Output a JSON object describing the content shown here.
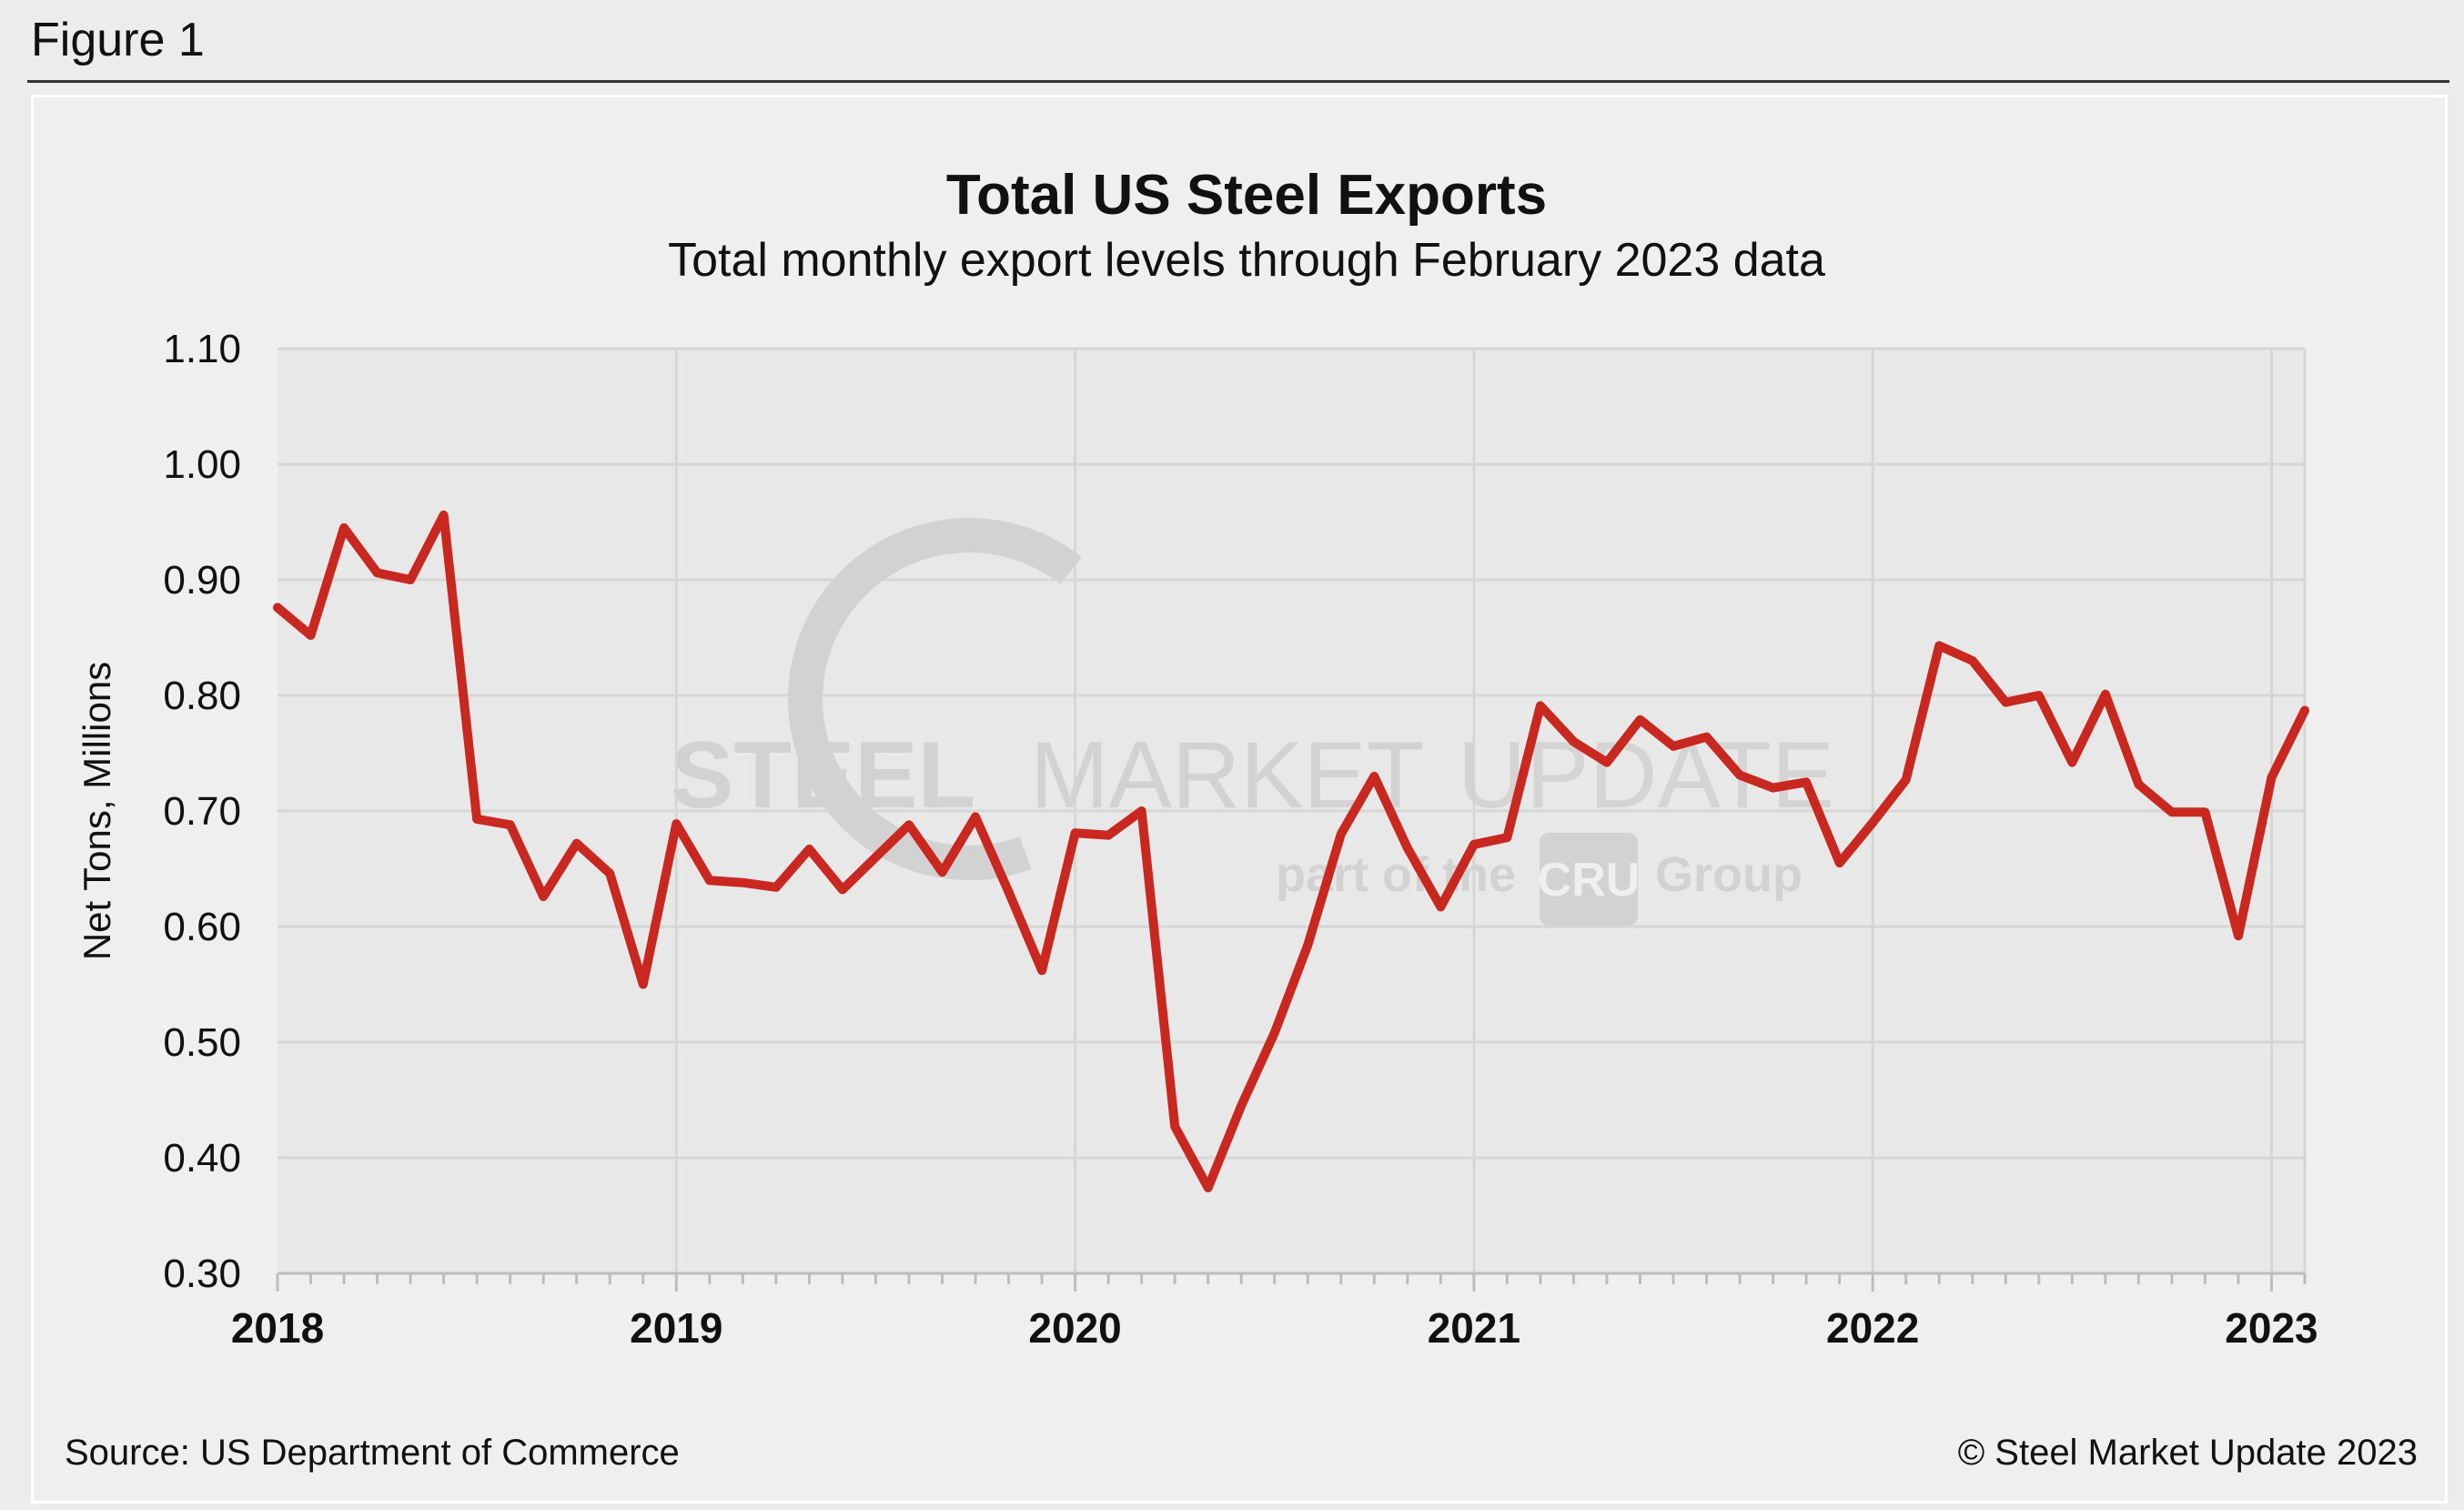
{
  "figure_label": "Figure 1",
  "colors": {
    "line": "#c8281f",
    "plot_bg": "#e8e8e9",
    "grid": "#d6d6d6",
    "watermark": "#d2d2d2"
  },
  "watermark": {
    "brand_bold": "STEEL",
    "brand_mid": "MARKET",
    "brand_light": "UPDATE",
    "tagline_prefix": "part of the",
    "tagline_logo": "CRU",
    "tagline_suffix": "Group"
  },
  "footer": {
    "source": "Source: US Department of Commerce",
    "copyright": "© Steel Market Update 2023"
  },
  "chart_data": {
    "type": "line",
    "title": "Total US Steel Exports",
    "subtitle": "Total monthly export levels through February 2023 data",
    "xlabel": "",
    "ylabel": "Net Tons, Millions",
    "ylim": [
      0.3,
      1.1
    ],
    "yticks": [
      "0.30",
      "0.40",
      "0.50",
      "0.60",
      "0.70",
      "0.80",
      "0.90",
      "1.00",
      "1.10"
    ],
    "xticks": [
      "2018",
      "2019",
      "2020",
      "2021",
      "2022",
      "2023"
    ],
    "grid": true,
    "x_start": "2018-01",
    "series": [
      {
        "name": "Total US Steel Exports",
        "x": [
          "2018-01",
          "2018-02",
          "2018-03",
          "2018-04",
          "2018-05",
          "2018-06",
          "2018-07",
          "2018-08",
          "2018-09",
          "2018-10",
          "2018-11",
          "2018-12",
          "2019-01",
          "2019-02",
          "2019-03",
          "2019-04",
          "2019-05",
          "2019-06",
          "2019-07",
          "2019-08",
          "2019-09",
          "2019-10",
          "2019-11",
          "2019-12",
          "2020-01",
          "2020-02",
          "2020-03",
          "2020-04",
          "2020-05",
          "2020-06",
          "2020-07",
          "2020-08",
          "2020-09",
          "2020-10",
          "2020-11",
          "2020-12",
          "2021-01",
          "2021-02",
          "2021-03",
          "2021-04",
          "2021-05",
          "2021-06",
          "2021-07",
          "2021-08",
          "2021-09",
          "2021-10",
          "2021-11",
          "2021-12",
          "2022-01",
          "2022-02",
          "2022-03",
          "2022-04",
          "2022-05",
          "2022-06",
          "2022-07",
          "2022-08",
          "2022-09",
          "2022-10",
          "2022-11",
          "2022-12",
          "2023-01",
          "2023-02"
        ],
        "values": [
          0.876,
          0.852,
          0.945,
          0.906,
          0.9,
          0.956,
          0.693,
          0.688,
          0.626,
          0.672,
          0.646,
          0.55,
          0.689,
          0.64,
          0.638,
          0.634,
          0.667,
          0.632,
          0.66,
          0.688,
          0.647,
          0.695,
          0.63,
          0.562,
          0.681,
          0.679,
          0.7,
          0.427,
          0.374,
          0.445,
          0.508,
          0.584,
          0.68,
          0.73,
          0.668,
          0.617,
          0.671,
          0.677,
          0.791,
          0.76,
          0.742,
          0.779,
          0.756,
          0.764,
          0.731,
          0.72,
          0.725,
          0.655,
          0.69,
          0.727,
          0.843,
          0.83,
          0.794,
          0.8,
          0.742,
          0.801,
          0.723,
          0.699,
          0.699,
          0.592,
          0.729,
          0.787
        ]
      }
    ]
  }
}
